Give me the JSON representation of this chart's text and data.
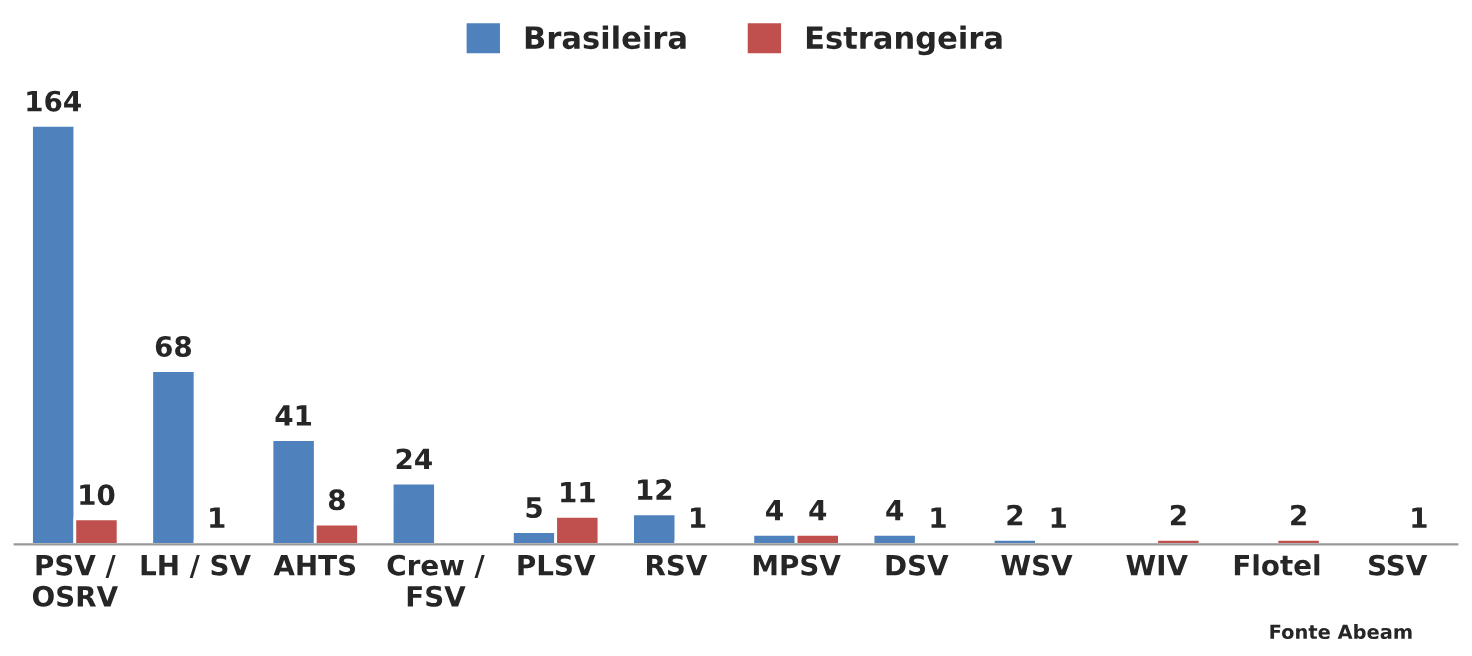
{
  "chart_data": {
    "type": "bar",
    "categories": [
      "PSV /\nOSRV",
      "LH / SV",
      "AHTS",
      "Crew /\nFSV",
      "PLSV",
      "RSV",
      "MPSV",
      "DSV",
      "WSV",
      "WIV",
      "Flotel",
      "SSV"
    ],
    "series": [
      {
        "name": "Brasileira",
        "color": "#4f81bd",
        "values": [
          164,
          68,
          41,
          24,
          5,
          12,
          4,
          4,
          2,
          null,
          null,
          null
        ]
      },
      {
        "name": "Estrangeira",
        "color": "#c0504d",
        "values": [
          10,
          1,
          8,
          null,
          11,
          1,
          4,
          1,
          1,
          2,
          2,
          1
        ]
      }
    ],
    "data_labels": true,
    "legend": "top",
    "annotations": [
      "Fonte Abeam"
    ]
  }
}
